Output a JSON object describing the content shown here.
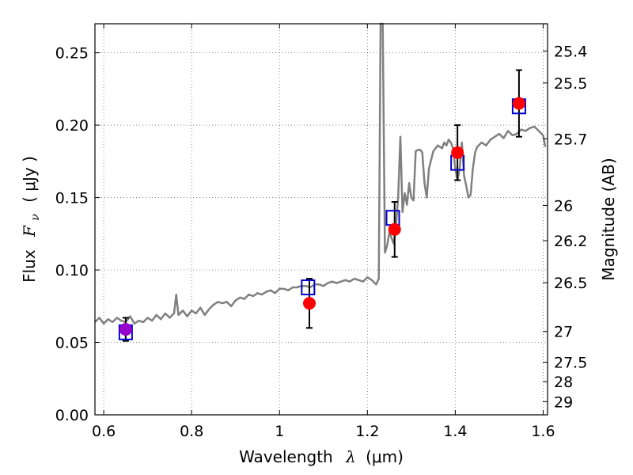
{
  "chart_data": {
    "type": "scatter",
    "xlabel": "Wavelength",
    "xlabel_symbol": "λ",
    "xlabel_unit": "(μm)",
    "ylabel": "Flux",
    "ylabel_symbol": "F",
    "ylabel_sub": "ν",
    "ylabel_unit": "( μJy )",
    "y2label": "Magnitude (AB)",
    "xlim": [
      0.58,
      1.61
    ],
    "ylim": [
      0.0,
      0.27
    ],
    "grid": true,
    "xticks": [
      0.6,
      0.8,
      1.0,
      1.2,
      1.4,
      1.6
    ],
    "xtick_labels": [
      "0.6",
      "0.8",
      "1",
      "1.2",
      "1.4",
      "1.6"
    ],
    "yticks": [
      0.0,
      0.05,
      0.1,
      0.15,
      0.2,
      0.25
    ],
    "ytick_labels": [
      "0.00",
      "0.05",
      "0.10",
      "0.15",
      "0.20",
      "0.25"
    ],
    "mag_ticks": [
      25.4,
      25.5,
      25.7,
      26,
      26.2,
      26.5,
      27,
      27.5,
      28,
      29
    ],
    "mag_tick_labels": [
      "25.4",
      "25.5",
      "25.7",
      "26",
      "26.2",
      "26.5",
      "27",
      "27.5",
      "28",
      "29"
    ],
    "model_spectrum": {
      "color": "#808080",
      "x": [
        0.58,
        0.59,
        0.6,
        0.61,
        0.62,
        0.63,
        0.64,
        0.65,
        0.66,
        0.67,
        0.68,
        0.69,
        0.7,
        0.71,
        0.72,
        0.73,
        0.74,
        0.75,
        0.76,
        0.765,
        0.77,
        0.78,
        0.79,
        0.8,
        0.81,
        0.82,
        0.83,
        0.84,
        0.85,
        0.86,
        0.87,
        0.88,
        0.89,
        0.9,
        0.91,
        0.92,
        0.93,
        0.94,
        0.95,
        0.96,
        0.97,
        0.98,
        0.99,
        1.0,
        1.01,
        1.02,
        1.03,
        1.04,
        1.05,
        1.06,
        1.07,
        1.08,
        1.09,
        1.1,
        1.11,
        1.12,
        1.13,
        1.14,
        1.15,
        1.16,
        1.17,
        1.18,
        1.19,
        1.2,
        1.21,
        1.22,
        1.226,
        1.23,
        1.235,
        1.24,
        1.245,
        1.25,
        1.255,
        1.26,
        1.265,
        1.27,
        1.275,
        1.28,
        1.285,
        1.29,
        1.295,
        1.3,
        1.305,
        1.31,
        1.315,
        1.32,
        1.325,
        1.33,
        1.335,
        1.34,
        1.35,
        1.36,
        1.37,
        1.375,
        1.38,
        1.385,
        1.39,
        1.395,
        1.4,
        1.405,
        1.41,
        1.415,
        1.42,
        1.425,
        1.43,
        1.435,
        1.44,
        1.445,
        1.45,
        1.46,
        1.47,
        1.48,
        1.49,
        1.5,
        1.51,
        1.52,
        1.53,
        1.54,
        1.55,
        1.56,
        1.57,
        1.58,
        1.59,
        1.6,
        1.605
      ],
      "y": [
        0.064,
        0.067,
        0.063,
        0.066,
        0.064,
        0.067,
        0.065,
        0.064,
        0.068,
        0.063,
        0.065,
        0.064,
        0.067,
        0.065,
        0.069,
        0.066,
        0.07,
        0.067,
        0.07,
        0.083,
        0.069,
        0.072,
        0.068,
        0.072,
        0.07,
        0.074,
        0.069,
        0.073,
        0.076,
        0.078,
        0.077,
        0.078,
        0.075,
        0.079,
        0.081,
        0.08,
        0.083,
        0.082,
        0.084,
        0.083,
        0.085,
        0.086,
        0.084,
        0.087,
        0.087,
        0.086,
        0.088,
        0.088,
        0.089,
        0.089,
        0.088,
        0.09,
        0.09,
        0.089,
        0.091,
        0.092,
        0.091,
        0.092,
        0.093,
        0.092,
        0.094,
        0.093,
        0.092,
        0.095,
        0.093,
        0.09,
        0.094,
        0.27,
        0.27,
        0.112,
        0.117,
        0.126,
        0.122,
        0.118,
        0.13,
        0.15,
        0.192,
        0.14,
        0.153,
        0.145,
        0.16,
        0.15,
        0.148,
        0.182,
        0.183,
        0.183,
        0.181,
        0.16,
        0.15,
        0.17,
        0.182,
        0.186,
        0.184,
        0.188,
        0.186,
        0.19,
        0.188,
        0.184,
        0.17,
        0.162,
        0.17,
        0.188,
        0.165,
        0.158,
        0.15,
        0.152,
        0.17,
        0.181,
        0.185,
        0.188,
        0.186,
        0.19,
        0.192,
        0.194,
        0.191,
        0.196,
        0.193,
        0.194,
        0.197,
        0.196,
        0.198,
        0.199,
        0.196,
        0.193,
        0.185
      ]
    },
    "filter_bands": {
      "color": "#0000cc",
      "x": [
        0.65,
        1.065,
        1.258,
        1.405,
        1.545
      ],
      "y": [
        0.057,
        0.088,
        0.136,
        0.174,
        0.213
      ]
    },
    "observations": {
      "color": "#ff0000",
      "first_point_color": "#9900cc",
      "x": [
        0.65,
        1.068,
        1.262,
        1.405,
        1.545
      ],
      "y": [
        0.059,
        0.077,
        0.128,
        0.181,
        0.215
      ],
      "yerr": [
        0.008,
        0.017,
        0.019,
        0.019,
        0.023
      ]
    }
  }
}
